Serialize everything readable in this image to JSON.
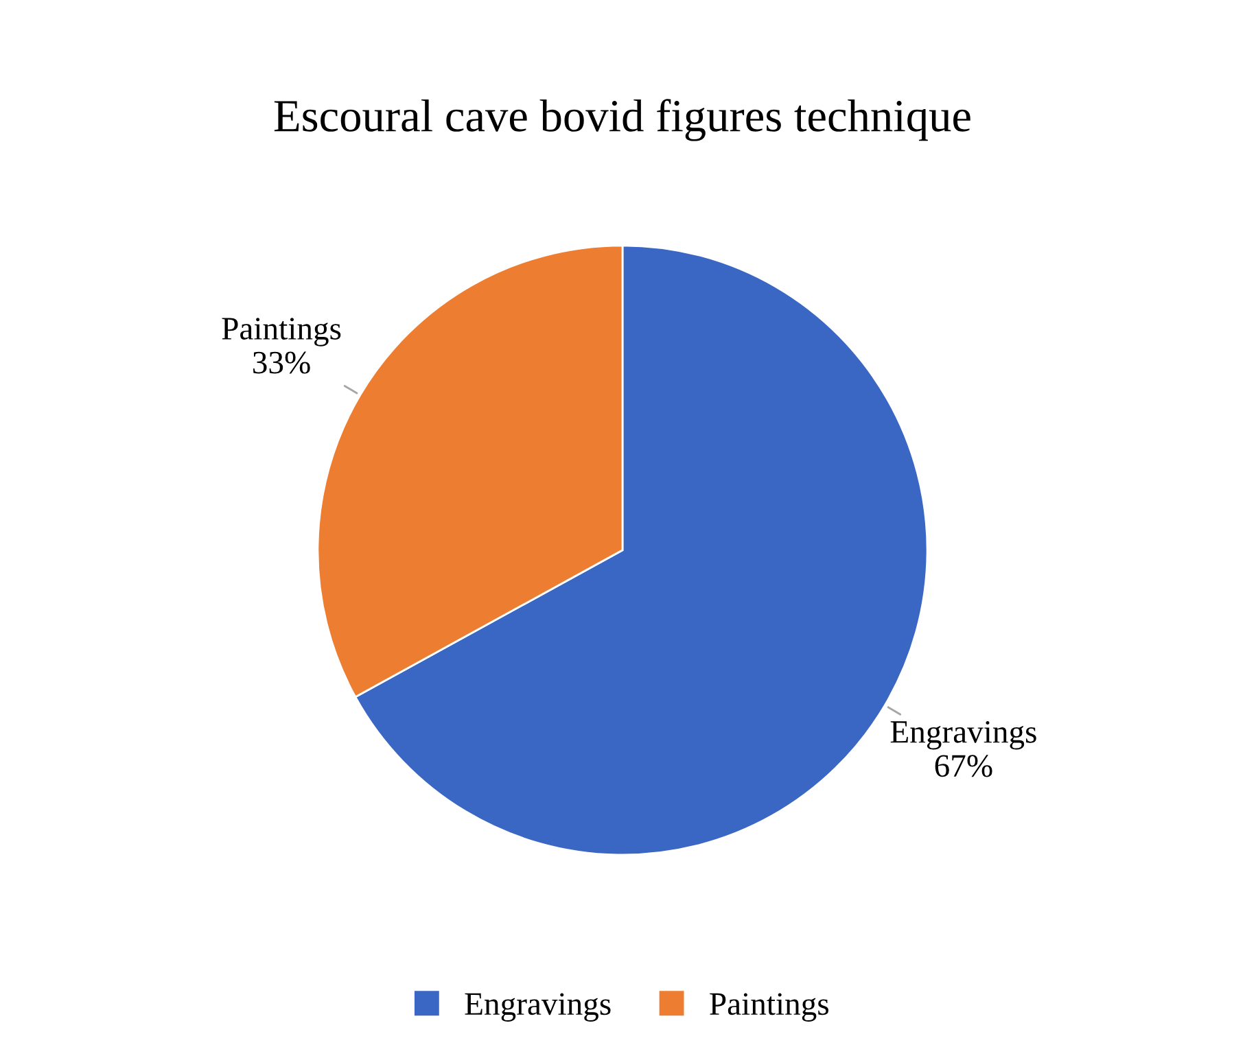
{
  "chart_data": {
    "type": "pie",
    "title": "Escoural cave bovid figures technique",
    "categories": [
      "Engravings",
      "Paintings"
    ],
    "values": [
      67,
      33
    ],
    "value_labels": [
      "67%",
      "33%"
    ],
    "colors": [
      "#3a66c4",
      "#ed7d31"
    ],
    "legend": "bottom"
  }
}
